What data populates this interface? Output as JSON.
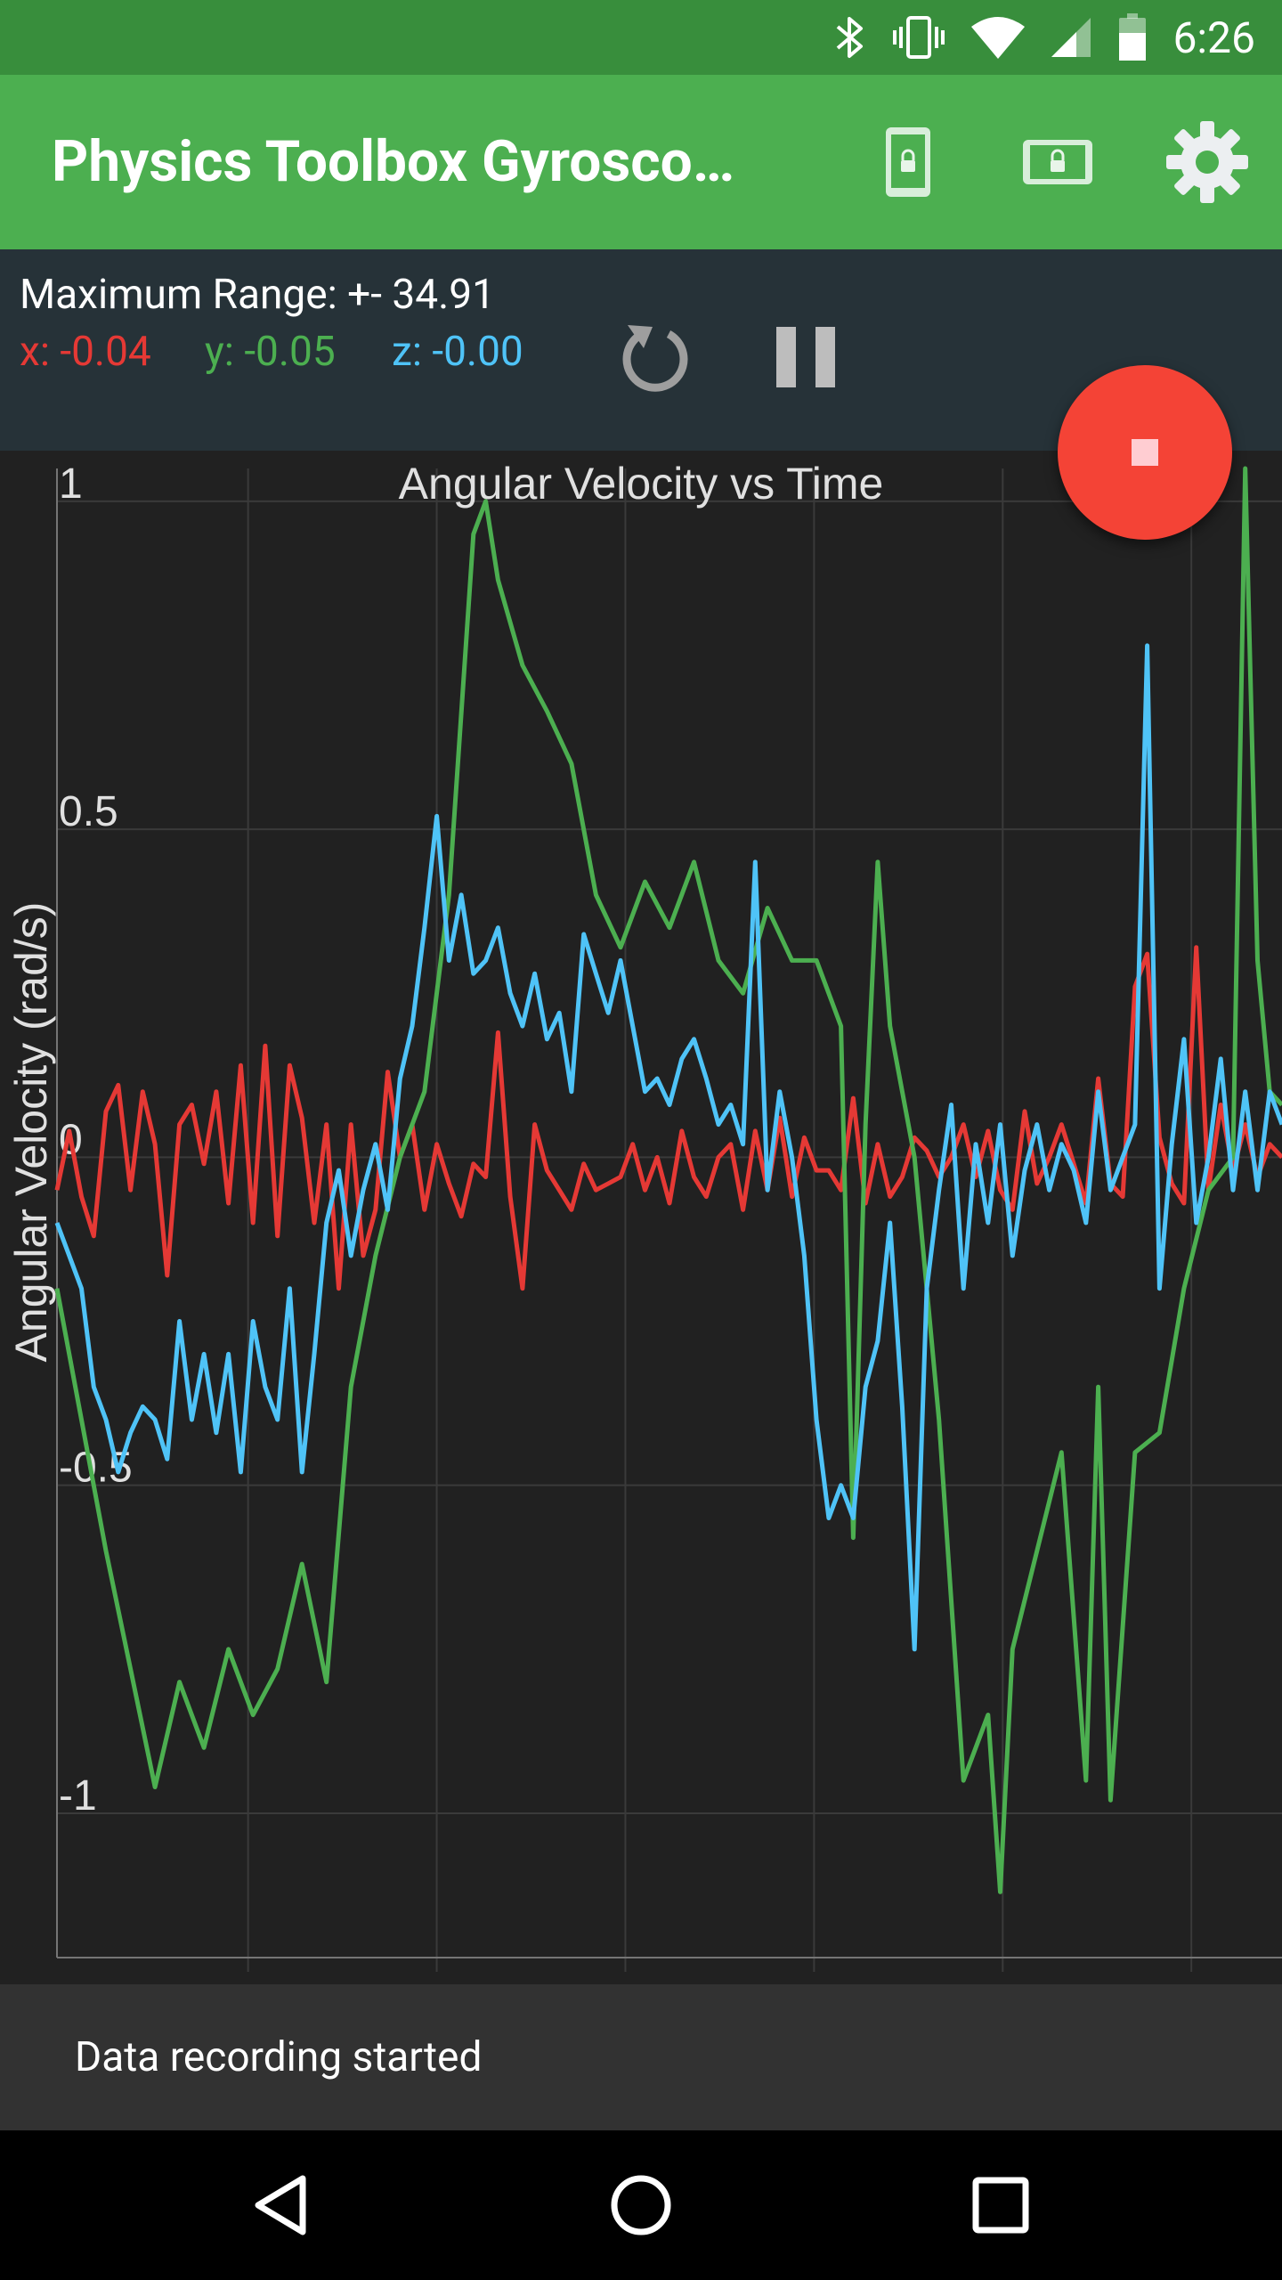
{
  "status_bar": {
    "time": "6:26",
    "icons": [
      "bluetooth-icon",
      "vibrate-icon",
      "wifi-icon",
      "signal-icon",
      "battery-icon"
    ]
  },
  "app_bar": {
    "title": "Physics Toolbox Gyrosco…",
    "actions": [
      "screen-lock-portrait-icon",
      "screen-lock-landscape-icon",
      "settings-gear-icon"
    ]
  },
  "panel": {
    "range_label": "Maximum Range: +- 34.91",
    "x_label": "x: -0.04",
    "y_label": "y: -0.05",
    "z_label": "z: -0.00",
    "reset_icon": "reset-icon",
    "pause_icon": "pause-icon"
  },
  "fab": {
    "icon": "stop-icon"
  },
  "snackbar": {
    "text": "Data recording started"
  },
  "nav_bar": {
    "icons": [
      "back-icon",
      "home-icon",
      "recents-icon"
    ]
  },
  "colors": {
    "status_bar": "#388E3C",
    "app_bar": "#4CAF50",
    "panel": "#263238",
    "chart_bg": "#212121",
    "x_series": "#E53935",
    "y_series": "#4CAF50",
    "z_series": "#4FC3F7",
    "fab": "#F44336"
  },
  "chart_data": {
    "type": "line",
    "title": "Angular Velocity vs Time",
    "xlabel": "",
    "ylabel": "Angular Velocity (rad/s)",
    "ylim": [
      -1.22,
      1.05
    ],
    "yticks": [
      1,
      0.5,
      0,
      -0.5,
      -1
    ],
    "ytick_labels": [
      "1",
      "0.5",
      "0",
      "-0.5",
      "-1"
    ],
    "xlim": [
      0,
      100
    ],
    "grid": true,
    "legend": "none",
    "series": [
      {
        "name": "x",
        "color": "#E53935",
        "values": [
          [
            0,
            -0.05
          ],
          [
            1,
            0.04
          ],
          [
            2,
            -0.06
          ],
          [
            3,
            -0.12
          ],
          [
            4,
            0.07
          ],
          [
            5,
            0.11
          ],
          [
            6,
            -0.05
          ],
          [
            7,
            0.1
          ],
          [
            8,
            0.02
          ],
          [
            9,
            -0.18
          ],
          [
            10,
            0.05
          ],
          [
            11,
            0.08
          ],
          [
            12,
            -0.01
          ],
          [
            13,
            0.1
          ],
          [
            14,
            -0.07
          ],
          [
            15,
            0.14
          ],
          [
            16,
            -0.1
          ],
          [
            17,
            0.17
          ],
          [
            18,
            -0.12
          ],
          [
            19,
            0.14
          ],
          [
            20,
            0.06
          ],
          [
            21,
            -0.1
          ],
          [
            22,
            0.05
          ],
          [
            23,
            -0.2
          ],
          [
            24,
            0.05
          ],
          [
            25,
            -0.15
          ],
          [
            26,
            -0.08
          ],
          [
            27,
            0.13
          ],
          [
            28,
            0.0
          ],
          [
            29,
            0.05
          ],
          [
            30,
            -0.08
          ],
          [
            31,
            0.02
          ],
          [
            32,
            -0.04
          ],
          [
            33,
            -0.09
          ],
          [
            34,
            -0.01
          ],
          [
            35,
            -0.03
          ],
          [
            36,
            0.19
          ],
          [
            37,
            -0.06
          ],
          [
            38,
            -0.2
          ],
          [
            39,
            0.05
          ],
          [
            40,
            -0.02
          ],
          [
            41,
            -0.05
          ],
          [
            42,
            -0.08
          ],
          [
            43,
            -0.01
          ],
          [
            44,
            -0.05
          ],
          [
            45,
            -0.04
          ],
          [
            46,
            -0.03
          ],
          [
            47,
            0.02
          ],
          [
            48,
            -0.05
          ],
          [
            49,
            0.0
          ],
          [
            50,
            -0.07
          ],
          [
            51,
            0.04
          ],
          [
            52,
            -0.03
          ],
          [
            53,
            -0.06
          ],
          [
            54,
            0.0
          ],
          [
            55,
            0.02
          ],
          [
            56,
            -0.08
          ],
          [
            57,
            0.04
          ],
          [
            58,
            -0.05
          ],
          [
            59,
            0.06
          ],
          [
            60,
            -0.06
          ],
          [
            61,
            0.03
          ],
          [
            62,
            -0.02
          ],
          [
            63,
            -0.02
          ],
          [
            64,
            -0.05
          ],
          [
            65,
            0.09
          ],
          [
            66,
            -0.07
          ],
          [
            67,
            0.02
          ],
          [
            68,
            -0.06
          ],
          [
            69,
            -0.03
          ],
          [
            70,
            0.03
          ],
          [
            71,
            0.01
          ],
          [
            72,
            -0.03
          ],
          [
            73,
            0.0
          ],
          [
            74,
            0.05
          ],
          [
            75,
            -0.03
          ],
          [
            76,
            0.04
          ],
          [
            77,
            -0.05
          ],
          [
            78,
            -0.08
          ],
          [
            79,
            0.07
          ],
          [
            80,
            -0.04
          ],
          [
            81,
            0.0
          ],
          [
            82,
            0.05
          ],
          [
            83,
            -0.01
          ],
          [
            84,
            -0.07
          ],
          [
            85,
            0.12
          ],
          [
            86,
            -0.04
          ],
          [
            87,
            -0.06
          ],
          [
            88,
            0.26
          ],
          [
            89,
            0.31
          ],
          [
            90,
            0.03
          ],
          [
            91,
            -0.04
          ],
          [
            92,
            -0.07
          ],
          [
            93,
            0.32
          ],
          [
            94,
            -0.05
          ],
          [
            95,
            0.08
          ],
          [
            96,
            -0.02
          ],
          [
            97,
            0.05
          ],
          [
            98,
            -0.03
          ],
          [
            99,
            0.02
          ],
          [
            100,
            0.0
          ]
        ]
      },
      {
        "name": "y",
        "color": "#4CAF50",
        "values": [
          [
            0,
            -0.2
          ],
          [
            2,
            -0.4
          ],
          [
            4,
            -0.6
          ],
          [
            6,
            -0.78
          ],
          [
            8,
            -0.96
          ],
          [
            10,
            -0.8
          ],
          [
            12,
            -0.9
          ],
          [
            14,
            -0.75
          ],
          [
            16,
            -0.85
          ],
          [
            18,
            -0.78
          ],
          [
            20,
            -0.62
          ],
          [
            22,
            -0.8
          ],
          [
            24,
            -0.35
          ],
          [
            26,
            -0.15
          ],
          [
            28,
            0.0
          ],
          [
            30,
            0.1
          ],
          [
            32,
            0.4
          ],
          [
            34,
            0.95
          ],
          [
            35,
            1.0
          ],
          [
            36,
            0.88
          ],
          [
            38,
            0.75
          ],
          [
            40,
            0.68
          ],
          [
            42,
            0.6
          ],
          [
            44,
            0.4
          ],
          [
            46,
            0.32
          ],
          [
            48,
            0.42
          ],
          [
            50,
            0.35
          ],
          [
            52,
            0.45
          ],
          [
            54,
            0.3
          ],
          [
            56,
            0.25
          ],
          [
            58,
            0.38
          ],
          [
            60,
            0.3
          ],
          [
            62,
            0.3
          ],
          [
            64,
            0.2
          ],
          [
            65,
            -0.58
          ],
          [
            66,
            0.05
          ],
          [
            67,
            0.45
          ],
          [
            68,
            0.2
          ],
          [
            70,
            0.0
          ],
          [
            72,
            -0.4
          ],
          [
            74,
            -0.95
          ],
          [
            76,
            -0.85
          ],
          [
            77,
            -1.12
          ],
          [
            78,
            -0.75
          ],
          [
            80,
            -0.6
          ],
          [
            82,
            -0.45
          ],
          [
            84,
            -0.95
          ],
          [
            85,
            -0.35
          ],
          [
            86,
            -0.98
          ],
          [
            88,
            -0.45
          ],
          [
            90,
            -0.42
          ],
          [
            92,
            -0.2
          ],
          [
            94,
            -0.05
          ],
          [
            96,
            0.0
          ],
          [
            97,
            1.05
          ],
          [
            98,
            0.3
          ],
          [
            99,
            0.1
          ],
          [
            100,
            0.08
          ]
        ]
      },
      {
        "name": "z",
        "color": "#4FC3F7",
        "values": [
          [
            0,
            -0.1
          ],
          [
            2,
            -0.2
          ],
          [
            3,
            -0.35
          ],
          [
            4,
            -0.4
          ],
          [
            5,
            -0.48
          ],
          [
            6,
            -0.42
          ],
          [
            7,
            -0.38
          ],
          [
            8,
            -0.4
          ],
          [
            9,
            -0.46
          ],
          [
            10,
            -0.25
          ],
          [
            11,
            -0.4
          ],
          [
            12,
            -0.3
          ],
          [
            13,
            -0.42
          ],
          [
            14,
            -0.3
          ],
          [
            15,
            -0.48
          ],
          [
            16,
            -0.25
          ],
          [
            17,
            -0.35
          ],
          [
            18,
            -0.4
          ],
          [
            19,
            -0.2
          ],
          [
            20,
            -0.48
          ],
          [
            21,
            -0.3
          ],
          [
            22,
            -0.1
          ],
          [
            23,
            -0.02
          ],
          [
            24,
            -0.15
          ],
          [
            25,
            -0.05
          ],
          [
            26,
            0.02
          ],
          [
            27,
            -0.08
          ],
          [
            28,
            0.12
          ],
          [
            29,
            0.2
          ],
          [
            30,
            0.35
          ],
          [
            31,
            0.52
          ],
          [
            32,
            0.3
          ],
          [
            33,
            0.4
          ],
          [
            34,
            0.28
          ],
          [
            35,
            0.3
          ],
          [
            36,
            0.35
          ],
          [
            37,
            0.25
          ],
          [
            38,
            0.2
          ],
          [
            39,
            0.28
          ],
          [
            40,
            0.18
          ],
          [
            41,
            0.22
          ],
          [
            42,
            0.1
          ],
          [
            43,
            0.34
          ],
          [
            44,
            0.28
          ],
          [
            45,
            0.22
          ],
          [
            46,
            0.3
          ],
          [
            47,
            0.2
          ],
          [
            48,
            0.1
          ],
          [
            49,
            0.12
          ],
          [
            50,
            0.08
          ],
          [
            51,
            0.15
          ],
          [
            52,
            0.18
          ],
          [
            53,
            0.12
          ],
          [
            54,
            0.05
          ],
          [
            55,
            0.08
          ],
          [
            56,
            0.02
          ],
          [
            57,
            0.45
          ],
          [
            58,
            -0.05
          ],
          [
            59,
            0.1
          ],
          [
            60,
            0.0
          ],
          [
            61,
            -0.15
          ],
          [
            62,
            -0.4
          ],
          [
            63,
            -0.55
          ],
          [
            64,
            -0.5
          ],
          [
            65,
            -0.55
          ],
          [
            66,
            -0.35
          ],
          [
            67,
            -0.28
          ],
          [
            68,
            -0.1
          ],
          [
            69,
            -0.38
          ],
          [
            70,
            -0.75
          ],
          [
            71,
            -0.2
          ],
          [
            72,
            -0.05
          ],
          [
            73,
            0.08
          ],
          [
            74,
            -0.2
          ],
          [
            75,
            0.02
          ],
          [
            76,
            -0.1
          ],
          [
            77,
            0.05
          ],
          [
            78,
            -0.15
          ],
          [
            79,
            -0.02
          ],
          [
            80,
            0.05
          ],
          [
            81,
            -0.05
          ],
          [
            82,
            0.02
          ],
          [
            83,
            -0.02
          ],
          [
            84,
            -0.1
          ],
          [
            85,
            0.1
          ],
          [
            86,
            -0.05
          ],
          [
            87,
            0.0
          ],
          [
            88,
            0.05
          ],
          [
            89,
            0.78
          ],
          [
            90,
            -0.2
          ],
          [
            91,
            0.02
          ],
          [
            92,
            0.18
          ],
          [
            93,
            -0.1
          ],
          [
            94,
            0.0
          ],
          [
            95,
            0.15
          ],
          [
            96,
            -0.05
          ],
          [
            97,
            0.1
          ],
          [
            98,
            -0.05
          ],
          [
            99,
            0.1
          ],
          [
            100,
            0.05
          ]
        ]
      }
    ]
  }
}
